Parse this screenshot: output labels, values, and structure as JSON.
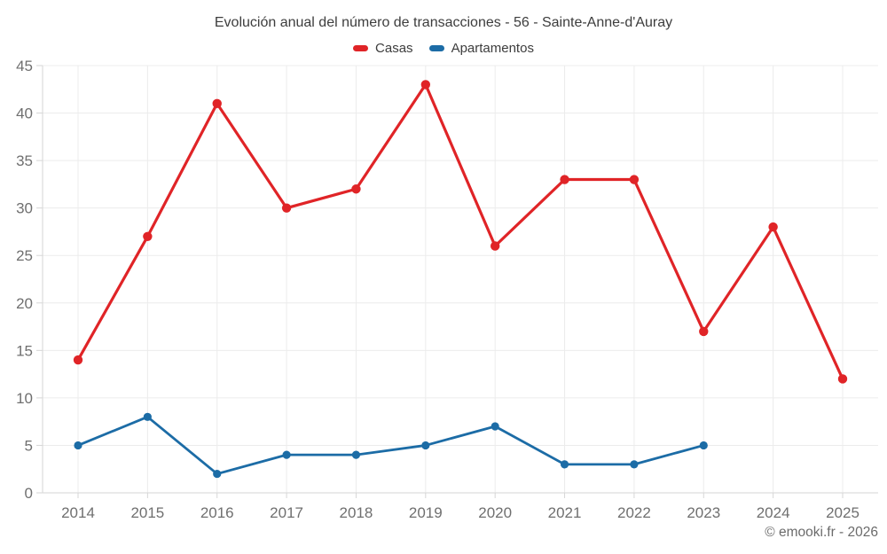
{
  "header": {
    "title": "Evolución anual del número de transacciones - 56 - Sainte-Anne-d'Auray"
  },
  "legend": [
    {
      "label": "Casas",
      "color": "#e02427"
    },
    {
      "label": "Apartamentos",
      "color": "#1c6ca6"
    }
  ],
  "footer": {
    "copyright": "© emooki.fr - 2026"
  },
  "chart_data": {
    "type": "line",
    "title": "Evolución anual del número de transacciones - 56 - Sainte-Anne-d'Auray",
    "categories": [
      "2014",
      "2015",
      "2016",
      "2017",
      "2018",
      "2019",
      "2020",
      "2021",
      "2022",
      "2023",
      "2024",
      "2025"
    ],
    "series": [
      {
        "name": "Casas",
        "color": "#e02427",
        "line_width": 3.2,
        "marker_radius": 5.2,
        "values": [
          14,
          27,
          41,
          30,
          32,
          43,
          26,
          33,
          33,
          17,
          28,
          12
        ]
      },
      {
        "name": "Apartamentos",
        "color": "#1c6ca6",
        "line_width": 2.8,
        "marker_radius": 4.6,
        "values": [
          5,
          8,
          2,
          4,
          4,
          5,
          7,
          3,
          3,
          5,
          null,
          null
        ]
      }
    ],
    "xlabel": "",
    "ylabel": "",
    "ylim": [
      0,
      45
    ],
    "ytick_step": 5,
    "yticks": [
      0,
      5,
      10,
      15,
      20,
      25,
      30,
      35,
      40,
      45
    ],
    "grid": true,
    "legend_position": "top",
    "colors": {
      "grid": "#ececec",
      "axis": "#d6d6d6",
      "tick_label": "#6f6f6f",
      "title_text": "#3d3d3d"
    }
  }
}
